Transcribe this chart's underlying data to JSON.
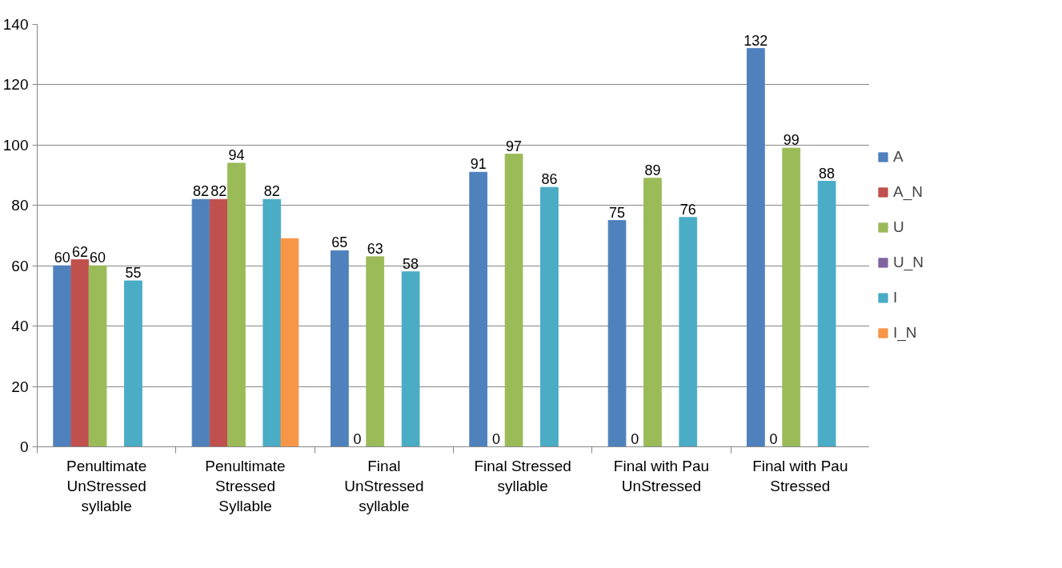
{
  "chart_data": {
    "type": "bar",
    "categories": [
      "Penultimate\nUnStressed\nsyllable",
      "Penultimate\nStressed\nSyllable",
      "Final\nUnStressed\nsyllable",
      "Final Stressed\nsyllable",
      "Final with Pau\nUnStressed",
      "Final with Pau\nStressed"
    ],
    "series": [
      {
        "name": "A",
        "color": "#4f81bd",
        "values": [
          60,
          82,
          65,
          91,
          75,
          132
        ],
        "value_labels": [
          "60",
          "82",
          "65",
          "91",
          "75",
          "132"
        ]
      },
      {
        "name": "A_N",
        "color": "#c0504d",
        "values": [
          62,
          82,
          0,
          0,
          0,
          0
        ],
        "value_labels": [
          "62",
          "82",
          "0",
          "0",
          "0",
          "0"
        ]
      },
      {
        "name": "U",
        "color": "#9bbb59",
        "values": [
          60,
          94,
          63,
          97,
          89,
          99
        ],
        "value_labels": [
          "60",
          "94",
          "63",
          "97",
          "89",
          "99"
        ]
      },
      {
        "name": "U_N",
        "color": "#8064a2",
        "values": [
          null,
          null,
          null,
          null,
          null,
          null
        ]
      },
      {
        "name": "I",
        "color": "#4bacc6",
        "values": [
          55,
          82,
          58,
          86,
          76,
          88
        ],
        "value_labels": [
          "55",
          "82",
          "58",
          "86",
          "76",
          "88"
        ]
      },
      {
        "name": "I_N",
        "color": "#f79646",
        "values": [
          null,
          69,
          null,
          null,
          null,
          null
        ],
        "value_labels": [
          null,
          null,
          null,
          null,
          null,
          null
        ]
      }
    ],
    "ylim": [
      0,
      140
    ],
    "yticks": [
      0,
      20,
      40,
      60,
      80,
      100,
      120,
      140
    ],
    "grid": "y",
    "legend": "right"
  }
}
